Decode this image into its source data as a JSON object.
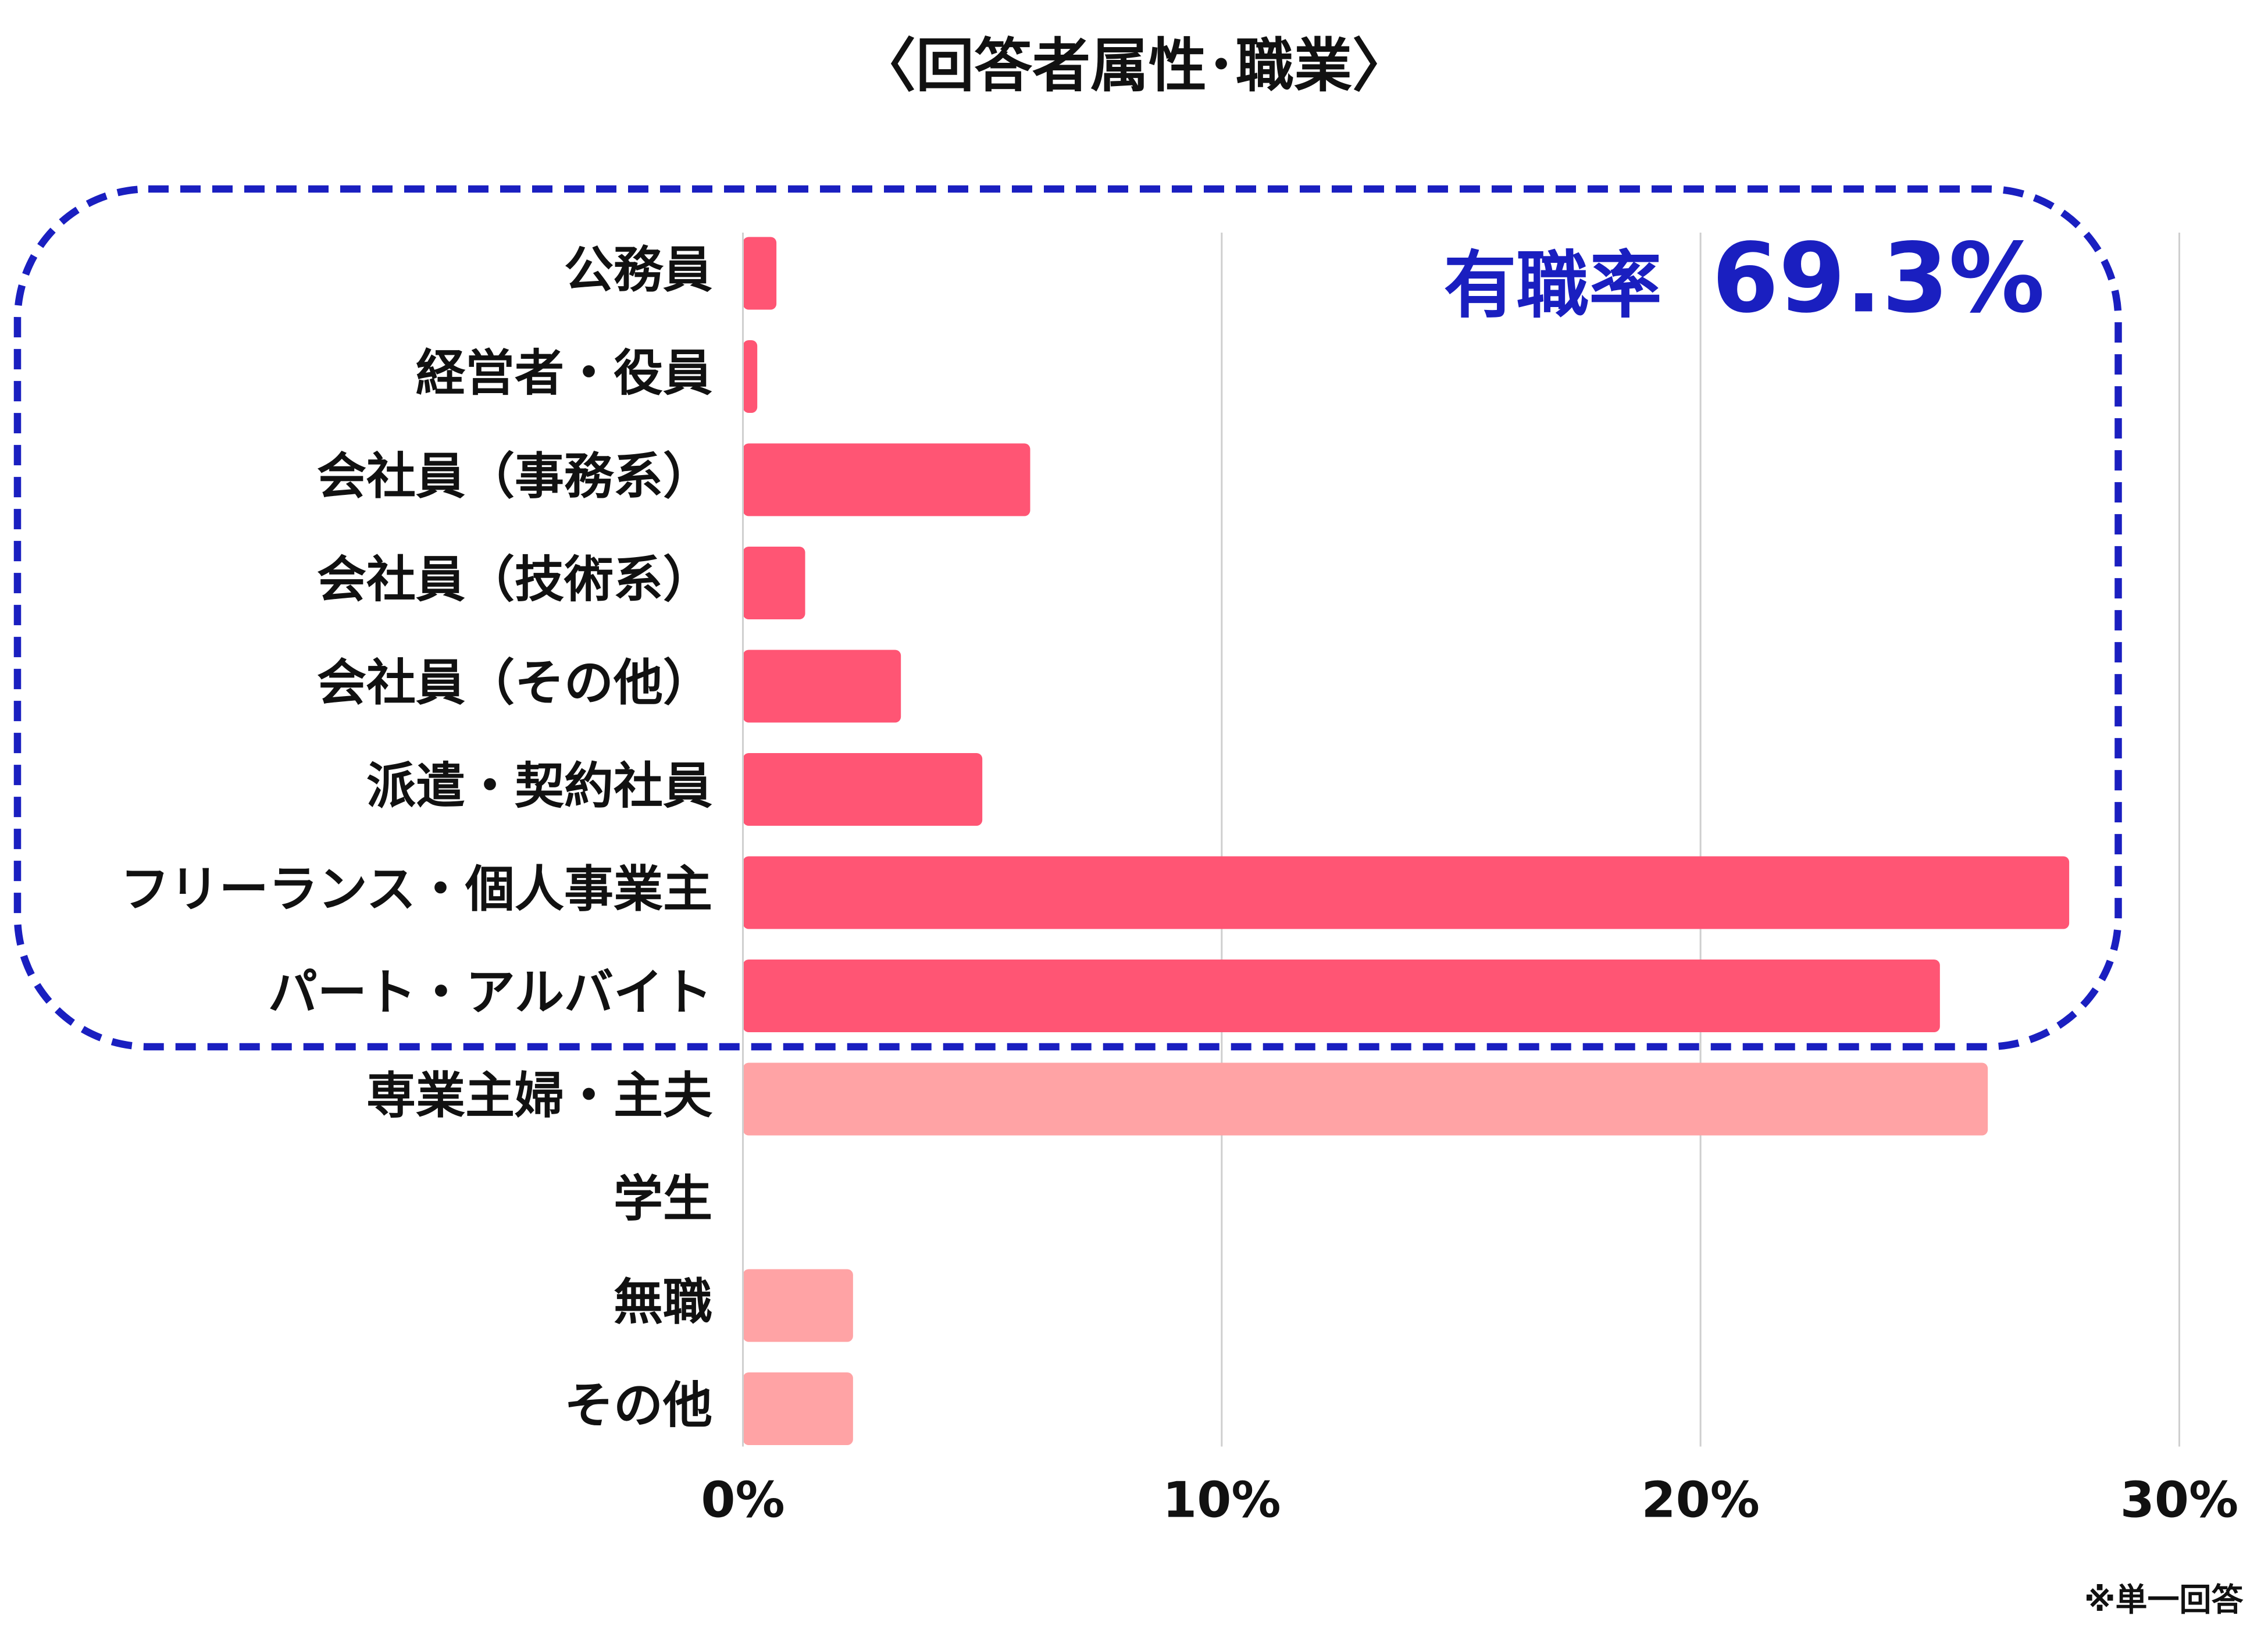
{
  "chart_data": {
    "type": "barh",
    "title": "〈回答者属性･職業〉",
    "categories": [
      "公務員",
      "経営者・役員",
      "会社員（事務系）",
      "会社員（技術系）",
      "会社員（その他）",
      "派遣・契約社員",
      "フリーランス・個人事業主",
      "パート・アルバイト",
      "専業主婦・主夫",
      "学生",
      "無職",
      "その他"
    ],
    "values": [
      0.7,
      0.3,
      6.0,
      1.3,
      3.3,
      5.0,
      27.7,
      25.0,
      26.0,
      0,
      2.3,
      2.3
    ],
    "colors": [
      "#ff5574",
      "#ff5574",
      "#ff5574",
      "#ff5574",
      "#ff5574",
      "#ff5574",
      "#ff5574",
      "#ff5574",
      "#ffa3a5",
      "#ffa3a5",
      "#ffa3a5",
      "#ffa3a5"
    ],
    "xlim": [
      0,
      30
    ],
    "xticks": [
      {
        "value": 0,
        "label": "0%"
      },
      {
        "value": 10,
        "label": "10%"
      },
      {
        "value": 20,
        "label": "20%"
      },
      {
        "value": 30,
        "label": "30%"
      }
    ],
    "grid": true,
    "annotation": [
      "有職率",
      "69.3%"
    ],
    "footnote": "※単一回答"
  }
}
